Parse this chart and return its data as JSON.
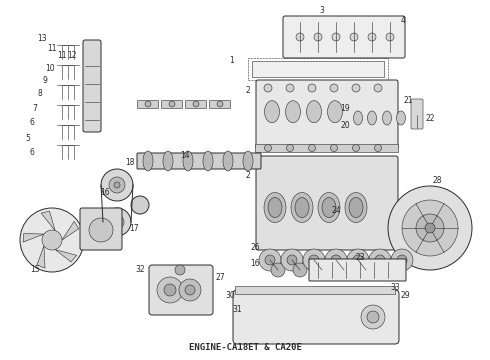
{
  "caption": "ENGINE-CA18ET & CA20E",
  "caption_fontsize": 6.5,
  "background_color": "#ffffff",
  "line_color": "#2a2a2a",
  "label_color": "#2a2a2a",
  "label_fontsize": 5.5,
  "fig_width": 4.9,
  "fig_height": 3.6,
  "dpi": 100
}
